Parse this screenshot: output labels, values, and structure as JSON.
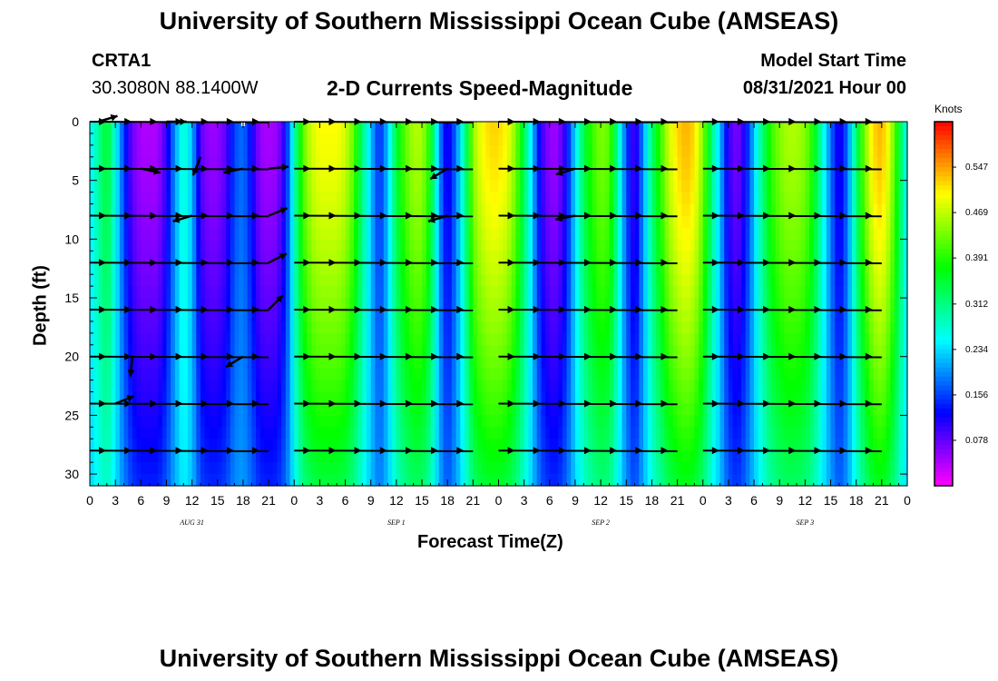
{
  "header": {
    "title_top": "University of Southern Mississippi Ocean Cube (AMSEAS)",
    "title_bottom": "University of Southern Mississippi Ocean Cube (AMSEAS)",
    "station": "CRTA1",
    "coordinates": "30.3080N  88.1400W",
    "plot_title": "2-D Currents Speed-Magnitude",
    "model_start_label": "Model Start Time",
    "model_start_value": "08/31/2021 Hour 00"
  },
  "chart_data": {
    "type": "heatmap",
    "title": "2-D Currents Speed-Magnitude",
    "xlabel": "Forecast Time(Z)",
    "ylabel": "Depth (ft)",
    "xlim": [
      0,
      96
    ],
    "ylim": [
      31,
      0
    ],
    "x_tick_labels": [
      "0",
      "3",
      "6",
      "9",
      "12",
      "15",
      "18",
      "21",
      "0",
      "3",
      "6",
      "9",
      "12",
      "15",
      "18",
      "21",
      "0",
      "3",
      "6",
      "9",
      "12",
      "15",
      "18",
      "21",
      "0",
      "3",
      "6",
      "9",
      "12",
      "15",
      "18",
      "21",
      "0"
    ],
    "y_ticks": [
      0,
      5,
      10,
      15,
      20,
      25,
      30
    ],
    "day_labels": [
      {
        "label": "AUG 31",
        "hour": 12
      },
      {
        "label": "SEP 1",
        "hour": 36
      },
      {
        "label": "SEP 2",
        "hour": 60
      },
      {
        "label": "SEP 3",
        "hour": 84
      }
    ],
    "colorbar": {
      "unit": "Knots",
      "ticks": [
        "0.547",
        "0.469",
        "0.391",
        "0.312",
        "0.234",
        "0.156",
        "0.078"
      ],
      "tick_values": [
        0.547,
        0.469,
        0.391,
        0.312,
        0.234,
        0.156,
        0.078
      ],
      "range": [
        0,
        0.625
      ]
    },
    "speed_profile_surface": [
      [
        0,
        0.24
      ],
      [
        1,
        0.3
      ],
      [
        2,
        0.36
      ],
      [
        3,
        0.26
      ],
      [
        4,
        0.15
      ],
      [
        5,
        0.07
      ],
      [
        6,
        0.04
      ],
      [
        7,
        0.04
      ],
      [
        8,
        0.04
      ],
      [
        9,
        0.1
      ],
      [
        10,
        0.2
      ],
      [
        11,
        0.28
      ],
      [
        12,
        0.22
      ],
      [
        13,
        0.08
      ],
      [
        14,
        0.05
      ],
      [
        15,
        0.05
      ],
      [
        16,
        0.08
      ],
      [
        17,
        0.16
      ],
      [
        18,
        0.18
      ],
      [
        19,
        0.12
      ],
      [
        20,
        0.05
      ],
      [
        21,
        0.04
      ],
      [
        22,
        0.05
      ],
      [
        23,
        0.12
      ],
      [
        24,
        0.28
      ],
      [
        25,
        0.42
      ],
      [
        26,
        0.48
      ],
      [
        27,
        0.5
      ],
      [
        28,
        0.5
      ],
      [
        29,
        0.5
      ],
      [
        30,
        0.48
      ],
      [
        31,
        0.42
      ],
      [
        32,
        0.32
      ],
      [
        33,
        0.22
      ],
      [
        34,
        0.14
      ],
      [
        35,
        0.22
      ],
      [
        36,
        0.35
      ],
      [
        37,
        0.42
      ],
      [
        38,
        0.46
      ],
      [
        39,
        0.46
      ],
      [
        40,
        0.38
      ],
      [
        41,
        0.2
      ],
      [
        42,
        0.1
      ],
      [
        43,
        0.18
      ],
      [
        44,
        0.3
      ],
      [
        45,
        0.45
      ],
      [
        46,
        0.5
      ],
      [
        47,
        0.52
      ],
      [
        48,
        0.52
      ],
      [
        49,
        0.5
      ],
      [
        50,
        0.44
      ],
      [
        51,
        0.34
      ],
      [
        52,
        0.22
      ],
      [
        53,
        0.1
      ],
      [
        54,
        0.05
      ],
      [
        55,
        0.05
      ],
      [
        56,
        0.12
      ],
      [
        57,
        0.24
      ],
      [
        58,
        0.34
      ],
      [
        59,
        0.4
      ],
      [
        60,
        0.44
      ],
      [
        61,
        0.42
      ],
      [
        62,
        0.3
      ],
      [
        63,
        0.16
      ],
      [
        64,
        0.08
      ],
      [
        65,
        0.2
      ],
      [
        66,
        0.32
      ],
      [
        67,
        0.4
      ],
      [
        68,
        0.48
      ],
      [
        69,
        0.52
      ],
      [
        70,
        0.54
      ],
      [
        71,
        0.52
      ],
      [
        72,
        0.44
      ],
      [
        73,
        0.32
      ],
      [
        74,
        0.22
      ],
      [
        75,
        0.1
      ],
      [
        76,
        0.06
      ],
      [
        77,
        0.12
      ],
      [
        78,
        0.22
      ],
      [
        79,
        0.32
      ],
      [
        80,
        0.4
      ],
      [
        81,
        0.44
      ],
      [
        82,
        0.46
      ],
      [
        83,
        0.46
      ],
      [
        84,
        0.44
      ],
      [
        85,
        0.38
      ],
      [
        86,
        0.28
      ],
      [
        87,
        0.18
      ],
      [
        88,
        0.1
      ],
      [
        89,
        0.18
      ],
      [
        90,
        0.32
      ],
      [
        91,
        0.44
      ],
      [
        92,
        0.52
      ],
      [
        93,
        0.54
      ],
      [
        94,
        0.48
      ],
      [
        95,
        0.36
      ],
      [
        96,
        0.24
      ]
    ],
    "vector_rows_depth_ft": [
      0,
      4,
      8,
      12,
      16,
      20,
      24,
      28
    ],
    "vector_groups_hours": [
      [
        0,
        21
      ],
      [
        24,
        45
      ],
      [
        48,
        69
      ],
      [
        72,
        93
      ]
    ],
    "vector_arrows": [
      {
        "hour": 1,
        "depth": 0,
        "dx": 1,
        "dy": -0.3
      },
      {
        "hour": 9,
        "depth": 0,
        "dx": 1,
        "dy": 0
      },
      {
        "hour": 6,
        "depth": 4,
        "dx": 1,
        "dy": 0.2
      },
      {
        "hour": 13,
        "depth": 3,
        "dx": -0.4,
        "dy": 1
      },
      {
        "hour": 18,
        "depth": 4,
        "dx": -1,
        "dy": 0.2
      },
      {
        "hour": 21,
        "depth": 4,
        "dx": 1,
        "dy": -0.1
      },
      {
        "hour": 12,
        "depth": 8,
        "dx": -1,
        "dy": 0.3
      },
      {
        "hour": 21,
        "depth": 8,
        "dx": 1,
        "dy": -0.4
      },
      {
        "hour": 21,
        "depth": 12,
        "dx": 1,
        "dy": -0.5
      },
      {
        "hour": 21,
        "depth": 16,
        "dx": 1,
        "dy": -1
      },
      {
        "hour": 5,
        "depth": 20,
        "dx": -0.1,
        "dy": 1
      },
      {
        "hour": 18,
        "depth": 20,
        "dx": -1,
        "dy": 0.6
      },
      {
        "hour": 3,
        "depth": 24,
        "dx": 1,
        "dy": -0.4
      },
      {
        "hour": 42,
        "depth": 4,
        "dx": -1,
        "dy": 0.6
      },
      {
        "hour": 42,
        "depth": 8,
        "dx": -1,
        "dy": 0.3
      },
      {
        "hour": 57,
        "depth": 4,
        "dx": -1,
        "dy": 0.3
      },
      {
        "hour": 57,
        "depth": 8,
        "dx": -1,
        "dy": 0.2
      }
    ],
    "max_marker": {
      "hour": 18,
      "depth": 0
    }
  }
}
